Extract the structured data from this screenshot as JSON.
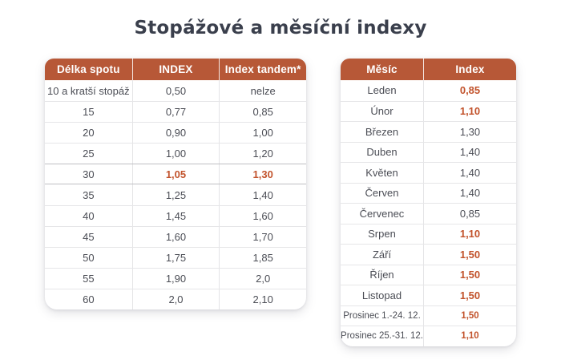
{
  "page": {
    "title": "Stopážové a měsíční indexy"
  },
  "colors": {
    "header_background": "#b75837",
    "header_text": "#ffffff",
    "accent_text": "#c2532c",
    "body_text": "#4b4d55",
    "title_text": "#3a3f4c"
  },
  "left_table": {
    "headers": [
      "Délka spotu",
      "INDEX",
      "Index tandem*"
    ],
    "rows": [
      {
        "cells": [
          "10 a kratší stopáž",
          "0,50",
          "nelze"
        ]
      },
      {
        "cells": [
          "15",
          "0,77",
          "0,85"
        ]
      },
      {
        "cells": [
          "20",
          "0,90",
          "1,00"
        ]
      },
      {
        "cells": [
          "25",
          "1,00",
          "1,20"
        ]
      },
      {
        "cells": [
          "30",
          "1,05",
          "1,30"
        ],
        "accent": [
          false,
          true,
          true
        ],
        "highlight": true
      },
      {
        "cells": [
          "35",
          "1,25",
          "1,40"
        ]
      },
      {
        "cells": [
          "40",
          "1,45",
          "1,60"
        ]
      },
      {
        "cells": [
          "45",
          "1,60",
          "1,70"
        ]
      },
      {
        "cells": [
          "50",
          "1,75",
          "1,85"
        ]
      },
      {
        "cells": [
          "55",
          "1,90",
          "2,0"
        ]
      },
      {
        "cells": [
          "60",
          "2,0",
          "2,10"
        ]
      }
    ]
  },
  "right_table": {
    "headers": [
      "Měsíc",
      "Index"
    ],
    "rows": [
      {
        "cells": [
          "Leden",
          "0,85"
        ],
        "accent": [
          false,
          true
        ]
      },
      {
        "cells": [
          "Únor",
          "1,10"
        ],
        "accent": [
          false,
          true
        ]
      },
      {
        "cells": [
          "Březen",
          "1,30"
        ]
      },
      {
        "cells": [
          "Duben",
          "1,40"
        ]
      },
      {
        "cells": [
          "Květen",
          "1,40"
        ]
      },
      {
        "cells": [
          "Červen",
          "1,40"
        ]
      },
      {
        "cells": [
          "Červenec",
          "0,85"
        ]
      },
      {
        "cells": [
          "Srpen",
          "1,10"
        ],
        "accent": [
          false,
          true
        ]
      },
      {
        "cells": [
          "Září",
          "1,50"
        ],
        "accent": [
          false,
          true
        ]
      },
      {
        "cells": [
          "Říjen",
          "1,50"
        ],
        "accent": [
          false,
          true
        ]
      },
      {
        "cells": [
          "Listopad",
          "1,50"
        ],
        "accent": [
          false,
          true
        ]
      },
      {
        "cells": [
          "Prosinec 1.-24. 12.",
          "1,50"
        ],
        "accent": [
          false,
          true
        ],
        "small": true
      },
      {
        "cells": [
          "Prosinec 25.-31. 12.",
          "1,10"
        ],
        "accent": [
          false,
          true
        ],
        "small": true
      }
    ]
  }
}
